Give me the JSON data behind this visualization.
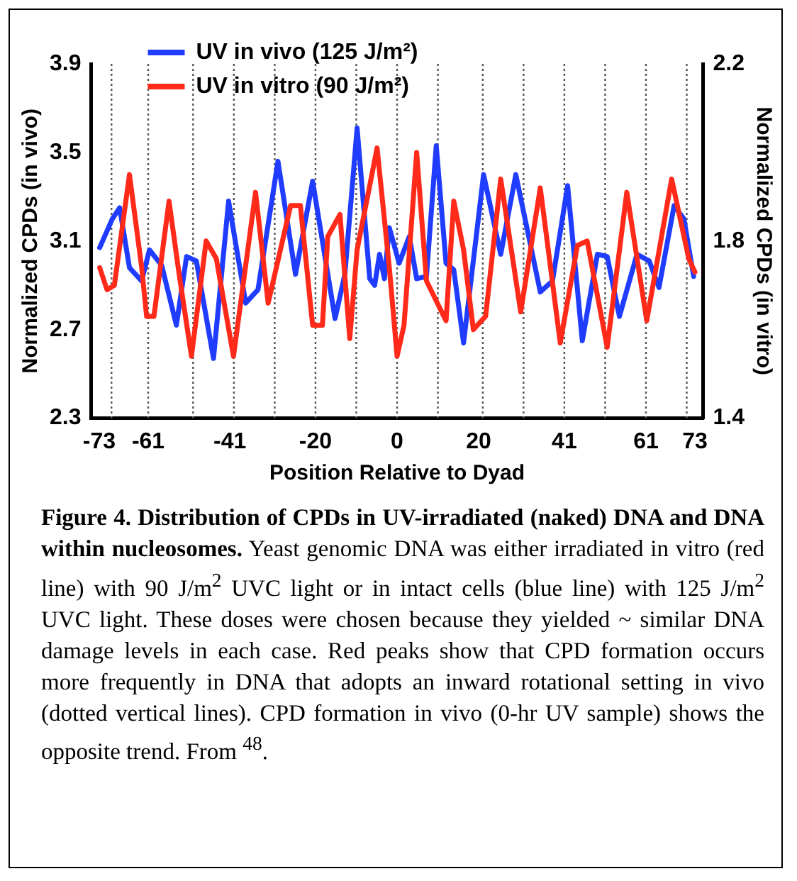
{
  "chart_data": {
    "type": "line",
    "xlabel": "Position Relative to Dyad",
    "ylabel": "Normalized CPDs (in vivo)",
    "y2label": "Normalized CPDs (in vitro)",
    "xlim": [
      -75,
      75
    ],
    "xticks": [
      -73,
      -61,
      -41,
      -20,
      0,
      20,
      41,
      61,
      73
    ],
    "ylim": [
      2.3,
      3.9
    ],
    "yticks": [
      2.3,
      2.7,
      3.1,
      3.5,
      3.9
    ],
    "y2lim": [
      1.4,
      2.2
    ],
    "y2ticks": [
      1.4,
      1.8,
      2.2
    ],
    "legend": "top left",
    "grid": false,
    "marker": "none",
    "line_style": "solid",
    "series": [
      {
        "name": "UV in vivo (125 J/m²)",
        "color": "#1f3cff",
        "x": [
          -72.9,
          -69.8,
          -68,
          -65.6,
          -62.6,
          -60.7,
          -57.7,
          -54.1,
          -51.6,
          -49.2,
          -45,
          -41.3,
          -37.1,
          -34.1,
          -29.2,
          -24.9,
          -20.7,
          -15.2,
          -12.8,
          -9.8,
          -6.7,
          -5.5,
          -4.3,
          -3.1,
          -1.9,
          0.5,
          3,
          4.8,
          7.2,
          9.6,
          12,
          13.9,
          16.3,
          21.2,
          25.4,
          29.1,
          35.1,
          38.1,
          41.8,
          45.4,
          49.1,
          51.5,
          54.5,
          58.8,
          61.8,
          64.2,
          67.9,
          70.3,
          72.7
        ],
        "values": [
          3.07,
          3.2,
          3.25,
          2.98,
          2.92,
          3.06,
          2.99,
          2.72,
          3.03,
          3.01,
          2.57,
          3.28,
          2.82,
          2.88,
          3.46,
          2.95,
          3.37,
          2.75,
          2.95,
          3.61,
          2.93,
          2.9,
          3.04,
          2.93,
          3.16,
          3.0,
          3.12,
          2.93,
          2.94,
          3.53,
          3.0,
          2.97,
          2.64,
          3.4,
          3.04,
          3.4,
          2.87,
          2.92,
          3.35,
          2.65,
          3.04,
          3.03,
          2.76,
          3.04,
          3.01,
          2.89,
          3.26,
          3.2,
          2.94
        ]
      },
      {
        "name": "UV in vitro (90 J/m²)",
        "color": "#ff2a1a",
        "axis": "y2",
        "x": [
          -72.9,
          -71.1,
          -69.3,
          -65.6,
          -62.6,
          -61.4,
          -59.6,
          -55.9,
          -53.5,
          -50.4,
          -46.8,
          -44.3,
          -40.1,
          -34.7,
          -31.6,
          -26.1,
          -23.7,
          -20.7,
          -18.3,
          -17,
          -14,
          -11.6,
          -9.8,
          -4.9,
          -1.9,
          0,
          1.7,
          4.8,
          7.2,
          12,
          13.9,
          16.3,
          18.7,
          21.7,
          25.4,
          30.3,
          35.1,
          40,
          44.2,
          46.6,
          51.5,
          56.3,
          61.2,
          67.3,
          71.5,
          73
        ],
        "values": [
          1.74,
          1.69,
          1.7,
          1.95,
          1.74,
          1.63,
          1.63,
          1.89,
          1.73,
          1.54,
          1.8,
          1.76,
          1.54,
          1.91,
          1.66,
          1.88,
          1.88,
          1.61,
          1.61,
          1.81,
          1.86,
          1.58,
          1.78,
          2.01,
          1.74,
          1.54,
          1.61,
          2.0,
          1.71,
          1.62,
          1.89,
          1.78,
          1.6,
          1.63,
          1.94,
          1.64,
          1.92,
          1.57,
          1.79,
          1.8,
          1.56,
          1.91,
          1.62,
          1.94,
          1.76,
          1.73
        ]
      }
    ],
    "ref_lines": [
      {
        "axis": "x",
        "value": -70,
        "color": "#555555",
        "line_style": "dotted"
      },
      {
        "axis": "x",
        "value": -61,
        "color": "#555555",
        "line_style": "dotted"
      },
      {
        "axis": "x",
        "value": -50,
        "color": "#555555",
        "line_style": "dotted"
      },
      {
        "axis": "x",
        "value": -40,
        "color": "#555555",
        "line_style": "dotted"
      },
      {
        "axis": "x",
        "value": -30,
        "color": "#555555",
        "line_style": "dotted"
      },
      {
        "axis": "x",
        "value": -20,
        "color": "#555555",
        "line_style": "dotted"
      },
      {
        "axis": "x",
        "value": -10,
        "color": "#555555",
        "line_style": "dotted"
      },
      {
        "axis": "x",
        "value": 0,
        "color": "#555555",
        "line_style": "dotted"
      },
      {
        "axis": "x",
        "value": 10,
        "color": "#555555",
        "line_style": "dotted"
      },
      {
        "axis": "x",
        "value": 21,
        "color": "#555555",
        "line_style": "dotted"
      },
      {
        "axis": "x",
        "value": 31,
        "color": "#555555",
        "line_style": "dotted"
      },
      {
        "axis": "x",
        "value": 41,
        "color": "#555555",
        "line_style": "dotted"
      },
      {
        "axis": "x",
        "value": 51,
        "color": "#555555",
        "line_style": "dotted"
      },
      {
        "axis": "x",
        "value": 61,
        "color": "#555555",
        "line_style": "dotted"
      },
      {
        "axis": "x",
        "value": 71,
        "color": "#555555",
        "line_style": "dotted"
      }
    ],
    "annotations": [
      "Figure 4. Distribution of CPDs in UV-irradiated (naked) DNA and DNA within nucleosomes.",
      "Yeast genomic DNA was either irradiated in vitro (red line) with 90 J/m$^{2}$ UVC light or in intact cells (blue line) with 125 J/m$^{2}$ UVC light. These doses were chosen because they yielded ~ similar DNA damage levels in each case. Red peaks show that CPD formation occurs more frequently in DNA that adopts an inward rotational setting in vivo (dotted vertical lines). CPD formation in vivo (0-hr UV sample) shows the opposite trend. From $^{48}$."
    ]
  }
}
